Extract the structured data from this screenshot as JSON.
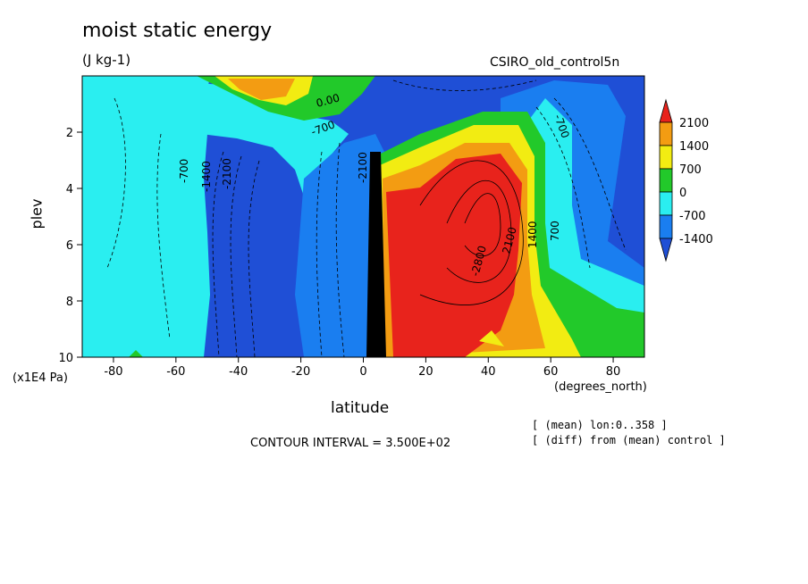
{
  "chart_data": {
    "type": "heatmap",
    "title": "moist static energy",
    "units": "(J kg-1)",
    "run_label": "CSIRO_old_control5n",
    "xlabel": "latitude",
    "x_units": "(degrees_north)",
    "ylabel": "plev",
    "y_scale_label": "(x1E4 Pa)",
    "xlim": [
      -90,
      90
    ],
    "ylim": [
      10,
      0
    ],
    "x_ticks": [
      -80,
      -60,
      -40,
      -20,
      0,
      20,
      40,
      60,
      80
    ],
    "x_tick_labels": [
      "-80",
      "-60",
      "-40",
      "-20",
      "0",
      "20",
      "40",
      "60",
      "80"
    ],
    "y_ticks": [
      2,
      4,
      6,
      8,
      10
    ],
    "y_tick_labels": [
      "2",
      "4",
      "6",
      "8",
      "10"
    ],
    "contour_interval_text": "CONTOUR INTERVAL = 3.500E+02",
    "notes": [
      "[ (mean) lon:0..358 ]",
      "[ (diff) from (mean) control ]"
    ],
    "colorbar": {
      "levels": [
        2100,
        1400,
        700,
        0,
        -700,
        -1400
      ],
      "labels": [
        "2100",
        "1400",
        "700",
        "0",
        "-700",
        "-1400"
      ],
      "colors": [
        "#e8231c",
        "#f39c12",
        "#f2ec12",
        "#22c92a",
        "#2aeef0",
        "#1a7ef0",
        "#1f4fd6"
      ]
    },
    "contour_labels": [
      "0.00",
      "-700",
      "-700",
      "-1400",
      "-2100",
      "-2800",
      "2100",
      "1400",
      "700",
      "-700",
      "-2100"
    ]
  },
  "colors": {
    "red": "#e8231c",
    "orange": "#f39c12",
    "yellow": "#f2ec12",
    "green": "#22c92a",
    "cyan": "#2aeef0",
    "light_blue": "#1a7ef0",
    "blue": "#1f4fd6"
  }
}
